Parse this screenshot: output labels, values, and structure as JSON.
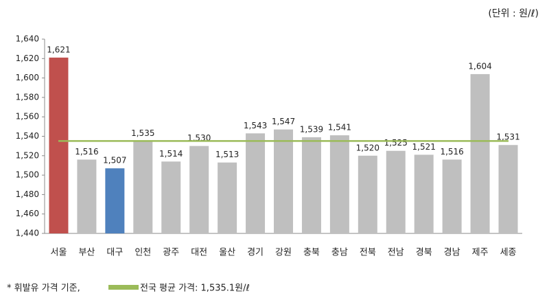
{
  "chart_data": {
    "type": "bar",
    "unit_note": "(단위 : 원/ℓ)",
    "footnote": "* 휘발유 가격 기준,",
    "categories": [
      "서울",
      "부산",
      "대구",
      "인천",
      "광주",
      "대전",
      "울산",
      "경기",
      "강원",
      "충북",
      "충남",
      "전북",
      "전남",
      "경북",
      "경남",
      "제주",
      "세종"
    ],
    "values": [
      1621,
      1516,
      1507,
      1535,
      1514,
      1530,
      1513,
      1543,
      1547,
      1539,
      1541,
      1520,
      1525,
      1521,
      1516,
      1604,
      1531
    ],
    "value_labels": [
      "1,621",
      "1,516",
      "1,507",
      "1,535",
      "1,514",
      "1,530",
      "1,513",
      "1,543",
      "1,547",
      "1,539",
      "1,541",
      "1,520",
      "1,525",
      "1,521",
      "1,516",
      "1,604",
      "1,531"
    ],
    "colors": [
      "#c0504d",
      "#bfbfbf",
      "#4f81bd",
      "#bfbfbf",
      "#bfbfbf",
      "#bfbfbf",
      "#bfbfbf",
      "#bfbfbf",
      "#bfbfbf",
      "#bfbfbf",
      "#bfbfbf",
      "#bfbfbf",
      "#bfbfbf",
      "#bfbfbf",
      "#bfbfbf",
      "#bfbfbf",
      "#bfbfbf"
    ],
    "reference_line": {
      "value": 1535.1,
      "label": "전국 평균 가격: 1,535.1원/ℓ",
      "color": "#9bbb59"
    },
    "ylim": [
      1440,
      1640
    ],
    "yticks": [
      {
        "value": 1440,
        "label": "1,440"
      },
      {
        "value": 1460,
        "label": "1,460"
      },
      {
        "value": 1480,
        "label": "1,480"
      },
      {
        "value": 1500,
        "label": "1,500"
      },
      {
        "value": 1520,
        "label": "1,520"
      },
      {
        "value": 1540,
        "label": "1,540"
      },
      {
        "value": 1560,
        "label": "1,560"
      },
      {
        "value": 1580,
        "label": "1,580"
      },
      {
        "value": 1600,
        "label": "1,600"
      },
      {
        "value": 1620,
        "label": "1,620"
      },
      {
        "value": 1640,
        "label": "1,640"
      }
    ],
    "grid": false
  }
}
